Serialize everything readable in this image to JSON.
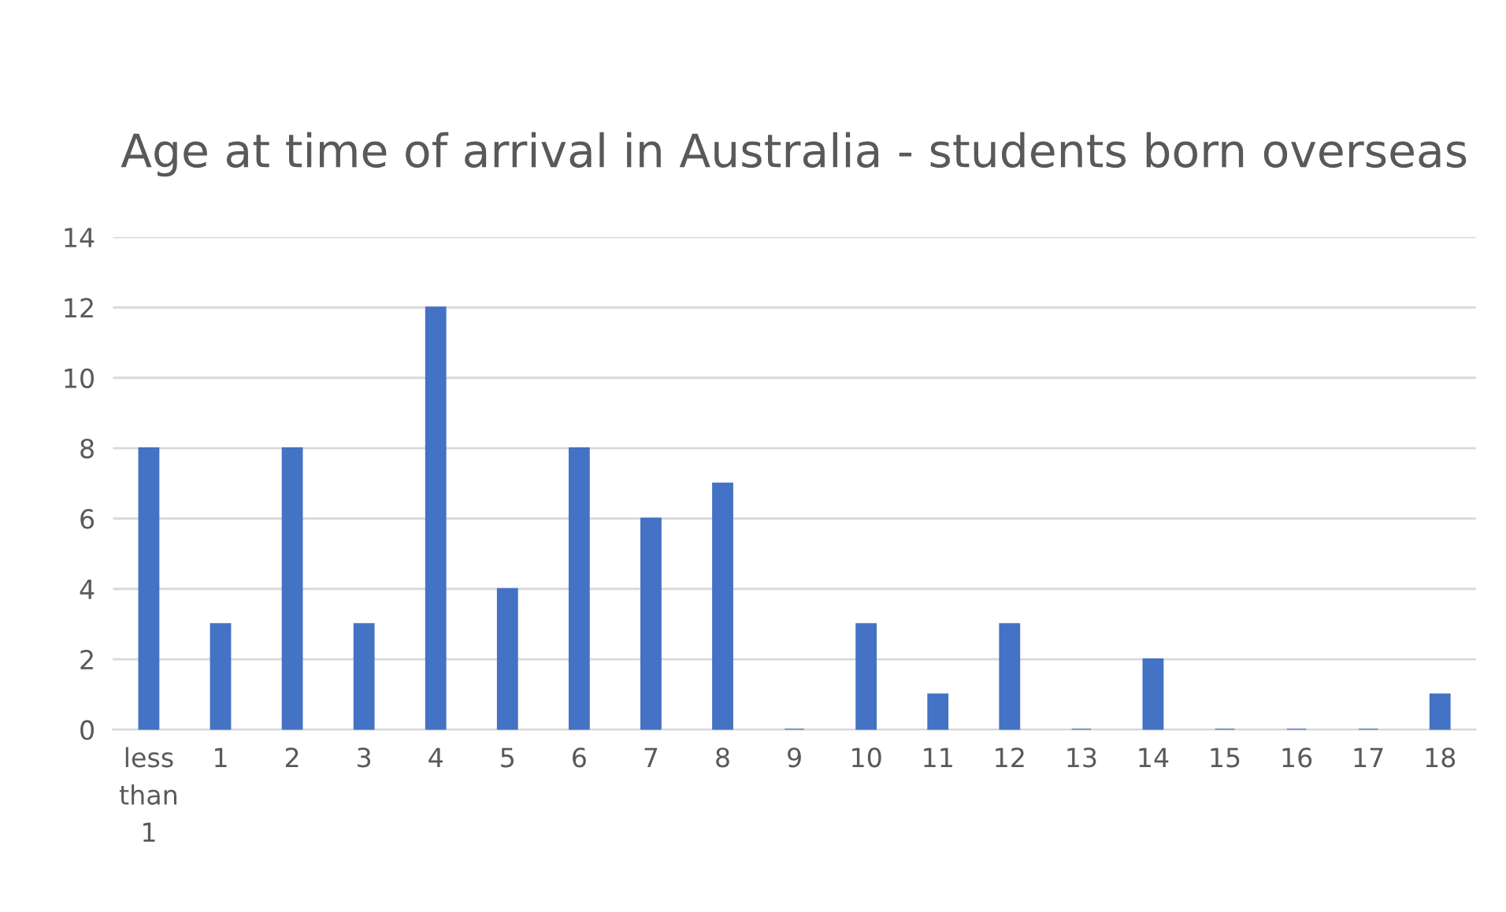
{
  "chart_data": {
    "type": "bar",
    "title": "Age at time of arrival in Australia - students born overseas",
    "categories": [
      "less than 1",
      "1",
      "2",
      "3",
      "4",
      "5",
      "6",
      "7",
      "8",
      "9",
      "10",
      "11",
      "12",
      "13",
      "14",
      "15",
      "16",
      "17",
      "18"
    ],
    "values": [
      8,
      3,
      8,
      3,
      12,
      4,
      8,
      6,
      7,
      0,
      3,
      1,
      3,
      0,
      2,
      0,
      0,
      0,
      1
    ],
    "color": "#4472c4",
    "ylim": [
      0,
      14
    ],
    "yticks": [
      0,
      2,
      4,
      6,
      8,
      10,
      12,
      14
    ],
    "grid": "y"
  }
}
